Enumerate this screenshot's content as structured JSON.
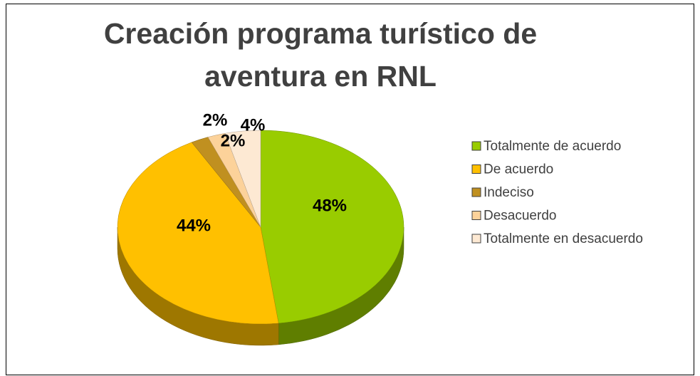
{
  "chart_data": {
    "type": "pie",
    "title": [
      "Creación programa turístico de",
      "aventura en RNL"
    ],
    "categories": [
      "Totalmente de acuerdo",
      "De acuerdo",
      "Indeciso",
      "Desacuerdo",
      "Totalmente en desacuerdo"
    ],
    "values": [
      48,
      44,
      2,
      2,
      4
    ],
    "value_labels": [
      "48%",
      "44%",
      "2%",
      "2%",
      "4%"
    ],
    "colors": [
      "#99cc00",
      "#ffc000",
      "#c09020",
      "#fcd29a",
      "#fde9d3"
    ],
    "legend": "right"
  }
}
